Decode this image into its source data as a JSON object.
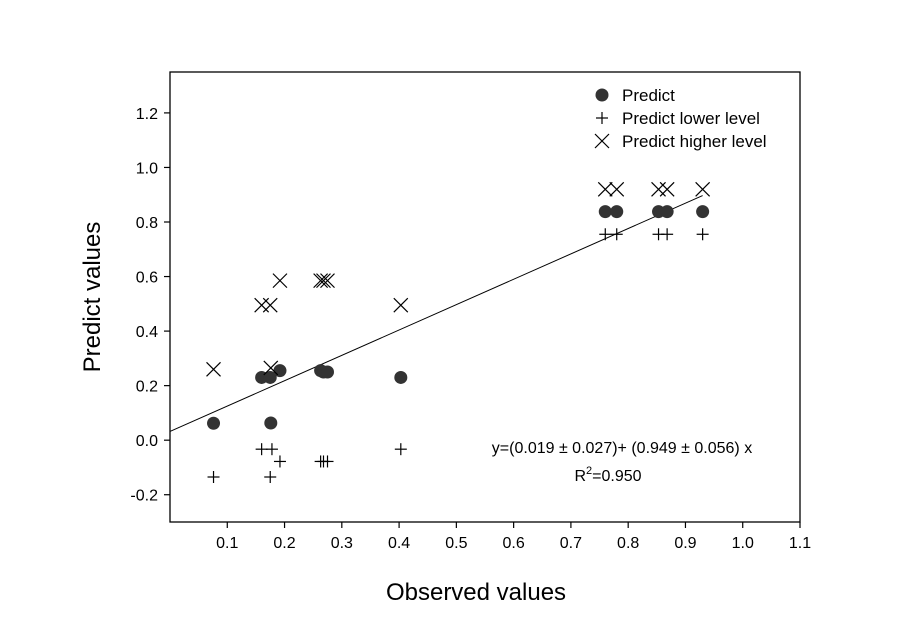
{
  "chart_data": {
    "type": "scatter",
    "xlabel": "Observed values",
    "ylabel": "Predict values",
    "xlim": [
      0.0,
      1.1
    ],
    "ylim": [
      -0.3,
      1.35
    ],
    "xticks": [
      0.1,
      0.2,
      0.3,
      0.4,
      0.5,
      0.6,
      0.7,
      0.8,
      0.9,
      1.0,
      1.1
    ],
    "xtick_labels": [
      "0.1",
      "0.2",
      "0.3",
      "0.4",
      "0.5",
      "0.6",
      "0.7",
      "0.8",
      "0.9",
      "1.0",
      "1.1"
    ],
    "yticks": [
      -0.2,
      0.0,
      0.2,
      0.4,
      0.6,
      0.8,
      1.0,
      1.2
    ],
    "ytick_labels": [
      "-0.2",
      "0.0",
      "0.2",
      "0.4",
      "0.6",
      "0.8",
      "1.0",
      "1.2"
    ],
    "grid": false,
    "legend_position": "top-right",
    "series": [
      {
        "name": "Predict",
        "marker": "filled-circle",
        "color": "#333333",
        "points": [
          [
            0.076,
            0.062
          ],
          [
            0.16,
            0.23
          ],
          [
            0.175,
            0.23
          ],
          [
            0.176,
            0.063
          ],
          [
            0.192,
            0.255
          ],
          [
            0.263,
            0.255
          ],
          [
            0.268,
            0.25
          ],
          [
            0.275,
            0.25
          ],
          [
            0.403,
            0.23
          ],
          [
            0.76,
            0.838
          ],
          [
            0.78,
            0.838
          ],
          [
            0.853,
            0.838
          ],
          [
            0.868,
            0.838
          ],
          [
            0.93,
            0.838
          ]
        ]
      },
      {
        "name": "Predict lower level",
        "marker": "plus",
        "color": "#000000",
        "points": [
          [
            0.076,
            -0.135
          ],
          [
            0.16,
            -0.033
          ],
          [
            0.175,
            -0.135
          ],
          [
            0.178,
            -0.033
          ],
          [
            0.192,
            -0.078
          ],
          [
            0.263,
            -0.078
          ],
          [
            0.268,
            -0.078
          ],
          [
            0.275,
            -0.078
          ],
          [
            0.403,
            -0.033
          ],
          [
            0.76,
            0.755
          ],
          [
            0.78,
            0.755
          ],
          [
            0.853,
            0.755
          ],
          [
            0.868,
            0.755
          ],
          [
            0.93,
            0.755
          ]
        ]
      },
      {
        "name": "Predict higher level",
        "marker": "x",
        "color": "#000000",
        "points": [
          [
            0.076,
            0.26
          ],
          [
            0.16,
            0.495
          ],
          [
            0.175,
            0.495
          ],
          [
            0.176,
            0.265
          ],
          [
            0.192,
            0.585
          ],
          [
            0.263,
            0.585
          ],
          [
            0.268,
            0.585
          ],
          [
            0.275,
            0.585
          ],
          [
            0.403,
            0.495
          ],
          [
            0.76,
            0.92
          ],
          [
            0.78,
            0.92
          ],
          [
            0.853,
            0.92
          ],
          [
            0.868,
            0.92
          ],
          [
            0.93,
            0.92
          ]
        ]
      }
    ],
    "fit_line": {
      "x0": 0.0,
      "y0": 0.032,
      "x1": 0.93,
      "y1": 0.897
    },
    "annotation": {
      "equation": "y=(0.019 ± 0.027)+ (0.949 ± 0.056) x",
      "r2_base": "R",
      "r2_sup": "2",
      "r2_value": "=0.950"
    }
  }
}
